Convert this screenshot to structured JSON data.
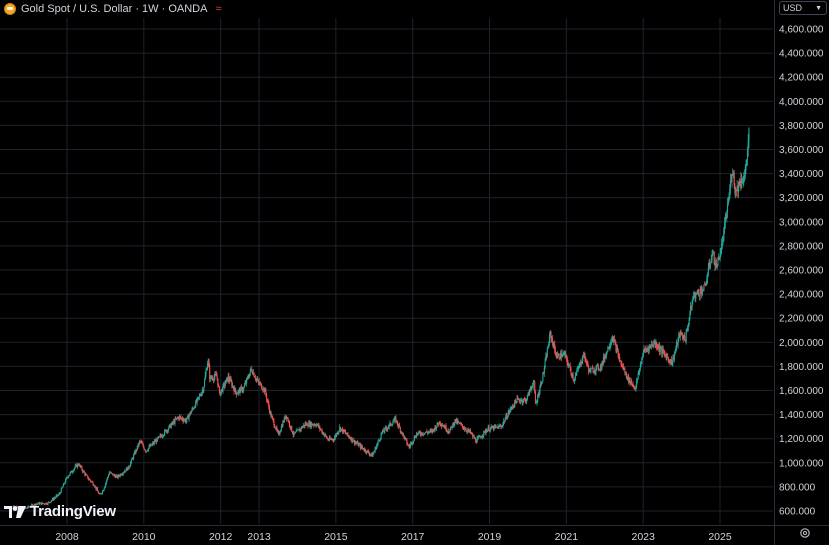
{
  "header": {
    "symbol_title": "Gold Spot / U.S. Dollar · 1W · OANDA",
    "live_indicator": "≈"
  },
  "currency_selector": {
    "value": "USD"
  },
  "branding": {
    "logo_text": "TradingView"
  },
  "colors": {
    "up": "#26a69a",
    "down": "#ef5350",
    "grid": "#1e222d",
    "axis_text": "#d1d4dc",
    "coin": "#f0a830"
  },
  "chart_data": {
    "type": "candlestick",
    "interval": "1W",
    "grid": true,
    "y_axis_position": "right",
    "ylim": [
      500,
      4700
    ],
    "xlim": [
      2006.6,
      2025.95
    ],
    "y_ticks": [
      600,
      800,
      1000,
      1200,
      1400,
      1600,
      1800,
      2000,
      2200,
      2400,
      2600,
      2800,
      3000,
      3200,
      3400,
      3600,
      3800,
      4000,
      4200,
      4400,
      4600
    ],
    "y_tick_labels": [
      "600.000",
      "800.000",
      "1,000.000",
      "1,200.000",
      "1,400.000",
      "1,600.000",
      "1,800.000",
      "2,000.000",
      "2,200.000",
      "2,400.000",
      "2,600.000",
      "2,800.000",
      "3,000.000",
      "3,200.000",
      "3,400.000",
      "3,600.000",
      "3,800.000",
      "4,000.000",
      "4,200.000",
      "4,400.000",
      "4,600.000"
    ],
    "x_ticks": [
      2008,
      2010,
      2012,
      2013,
      2015,
      2017,
      2019,
      2021,
      2023,
      2025
    ],
    "x_tick_labels": [
      "2008",
      "2010",
      "2012",
      "2013",
      "2015",
      "2017",
      "2019",
      "2021",
      "2023",
      "2025"
    ],
    "price_path": [
      [
        2006.6,
        640
      ],
      [
        2006.9,
        620
      ],
      [
        2007.2,
        660
      ],
      [
        2007.5,
        665
      ],
      [
        2007.8,
        740
      ],
      [
        2008.0,
        880
      ],
      [
        2008.2,
        960
      ],
      [
        2008.3,
        990
      ],
      [
        2008.5,
        890
      ],
      [
        2008.7,
        820
      ],
      [
        2008.85,
        730
      ],
      [
        2008.95,
        780
      ],
      [
        2009.1,
        920
      ],
      [
        2009.3,
        880
      ],
      [
        2009.6,
        960
      ],
      [
        2009.9,
        1180
      ],
      [
        2010.05,
        1100
      ],
      [
        2010.5,
        1240
      ],
      [
        2010.9,
        1380
      ],
      [
        2011.1,
        1350
      ],
      [
        2011.4,
        1520
      ],
      [
        2011.55,
        1620
      ],
      [
        2011.67,
        1860
      ],
      [
        2011.72,
        1700
      ],
      [
        2011.9,
        1720
      ],
      [
        2011.97,
        1570
      ],
      [
        2012.2,
        1710
      ],
      [
        2012.4,
        1580
      ],
      [
        2012.6,
        1620
      ],
      [
        2012.8,
        1780
      ],
      [
        2012.95,
        1680
      ],
      [
        2013.15,
        1600
      ],
      [
        2013.3,
        1400
      ],
      [
        2013.5,
        1230
      ],
      [
        2013.7,
        1400
      ],
      [
        2013.9,
        1230
      ],
      [
        2014.2,
        1320
      ],
      [
        2014.5,
        1320
      ],
      [
        2014.8,
        1190
      ],
      [
        2014.95,
        1200
      ],
      [
        2015.1,
        1290
      ],
      [
        2015.5,
        1170
      ],
      [
        2015.7,
        1120
      ],
      [
        2015.95,
        1060
      ],
      [
        2016.2,
        1250
      ],
      [
        2016.55,
        1360
      ],
      [
        2016.9,
        1130
      ],
      [
        2017.1,
        1240
      ],
      [
        2017.5,
        1260
      ],
      [
        2017.7,
        1340
      ],
      [
        2017.95,
        1260
      ],
      [
        2018.1,
        1350
      ],
      [
        2018.5,
        1250
      ],
      [
        2018.65,
        1180
      ],
      [
        2018.95,
        1280
      ],
      [
        2019.3,
        1300
      ],
      [
        2019.5,
        1420
      ],
      [
        2019.7,
        1520
      ],
      [
        2019.95,
        1520
      ],
      [
        2020.15,
        1680
      ],
      [
        2020.2,
        1480
      ],
      [
        2020.4,
        1740
      ],
      [
        2020.58,
        2070
      ],
      [
        2020.75,
        1880
      ],
      [
        2020.95,
        1900
      ],
      [
        2021.2,
        1690
      ],
      [
        2021.45,
        1900
      ],
      [
        2021.6,
        1760
      ],
      [
        2021.9,
        1800
      ],
      [
        2022.2,
        2050
      ],
      [
        2022.4,
        1840
      ],
      [
        2022.6,
        1700
      ],
      [
        2022.8,
        1620
      ],
      [
        2023.0,
        1920
      ],
      [
        2023.3,
        2000
      ],
      [
        2023.5,
        1920
      ],
      [
        2023.75,
        1830
      ],
      [
        2023.95,
        2070
      ],
      [
        2024.1,
        2030
      ],
      [
        2024.3,
        2380
      ],
      [
        2024.6,
        2450
      ],
      [
        2024.8,
        2750
      ],
      [
        2024.9,
        2620
      ],
      [
        2025.05,
        2800
      ],
      [
        2025.25,
        3250
      ],
      [
        2025.32,
        3460
      ],
      [
        2025.4,
        3250
      ],
      [
        2025.55,
        3350
      ],
      [
        2025.65,
        3380
      ],
      [
        2025.73,
        3650
      ],
      [
        2025.77,
        3800
      ]
    ]
  }
}
